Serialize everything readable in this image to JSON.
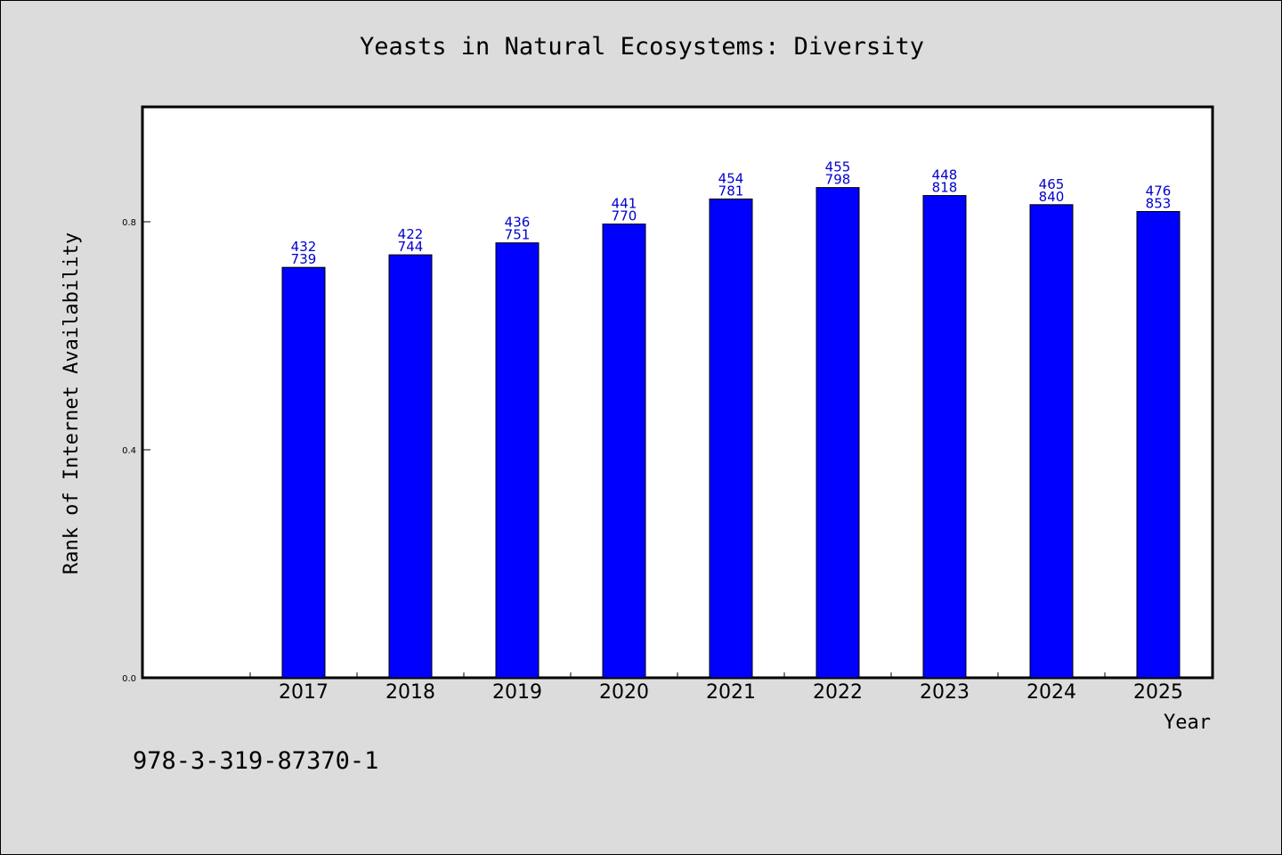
{
  "chart_data": {
    "type": "bar",
    "title": "Yeasts in Natural Ecosystems: Diversity",
    "xlabel": "Year",
    "ylabel": "Rank of Internet Availability",
    "categories": [
      "2017",
      "2018",
      "2019",
      "2020",
      "2021",
      "2022",
      "2023",
      "2024",
      "2025"
    ],
    "values": [
      0.72,
      0.742,
      0.763,
      0.796,
      0.84,
      0.86,
      0.846,
      0.83,
      0.818
    ],
    "data_labels_top": [
      "432",
      "422",
      "436",
      "441",
      "454",
      "455",
      "448",
      "465",
      "476"
    ],
    "data_labels_bottom": [
      "739",
      "744",
      "751",
      "770",
      "781",
      "798",
      "818",
      "840",
      "853"
    ],
    "ylim": [
      0.0,
      1.0
    ],
    "yticks": [
      0.0,
      0.4,
      0.8
    ],
    "ytick_labels": [
      "0.0",
      "0.4",
      "0.8"
    ],
    "empty_leading_slots": 1,
    "grid": false,
    "legend": "none",
    "colors": {
      "bar": "#0000ff",
      "bar_edge": "#000000",
      "data_label": "#0000cc",
      "plot_bg": "#ffffff",
      "page_bg": "#dcdcdc"
    }
  },
  "footer": {
    "isbn": "978-3-319-87370-1"
  }
}
